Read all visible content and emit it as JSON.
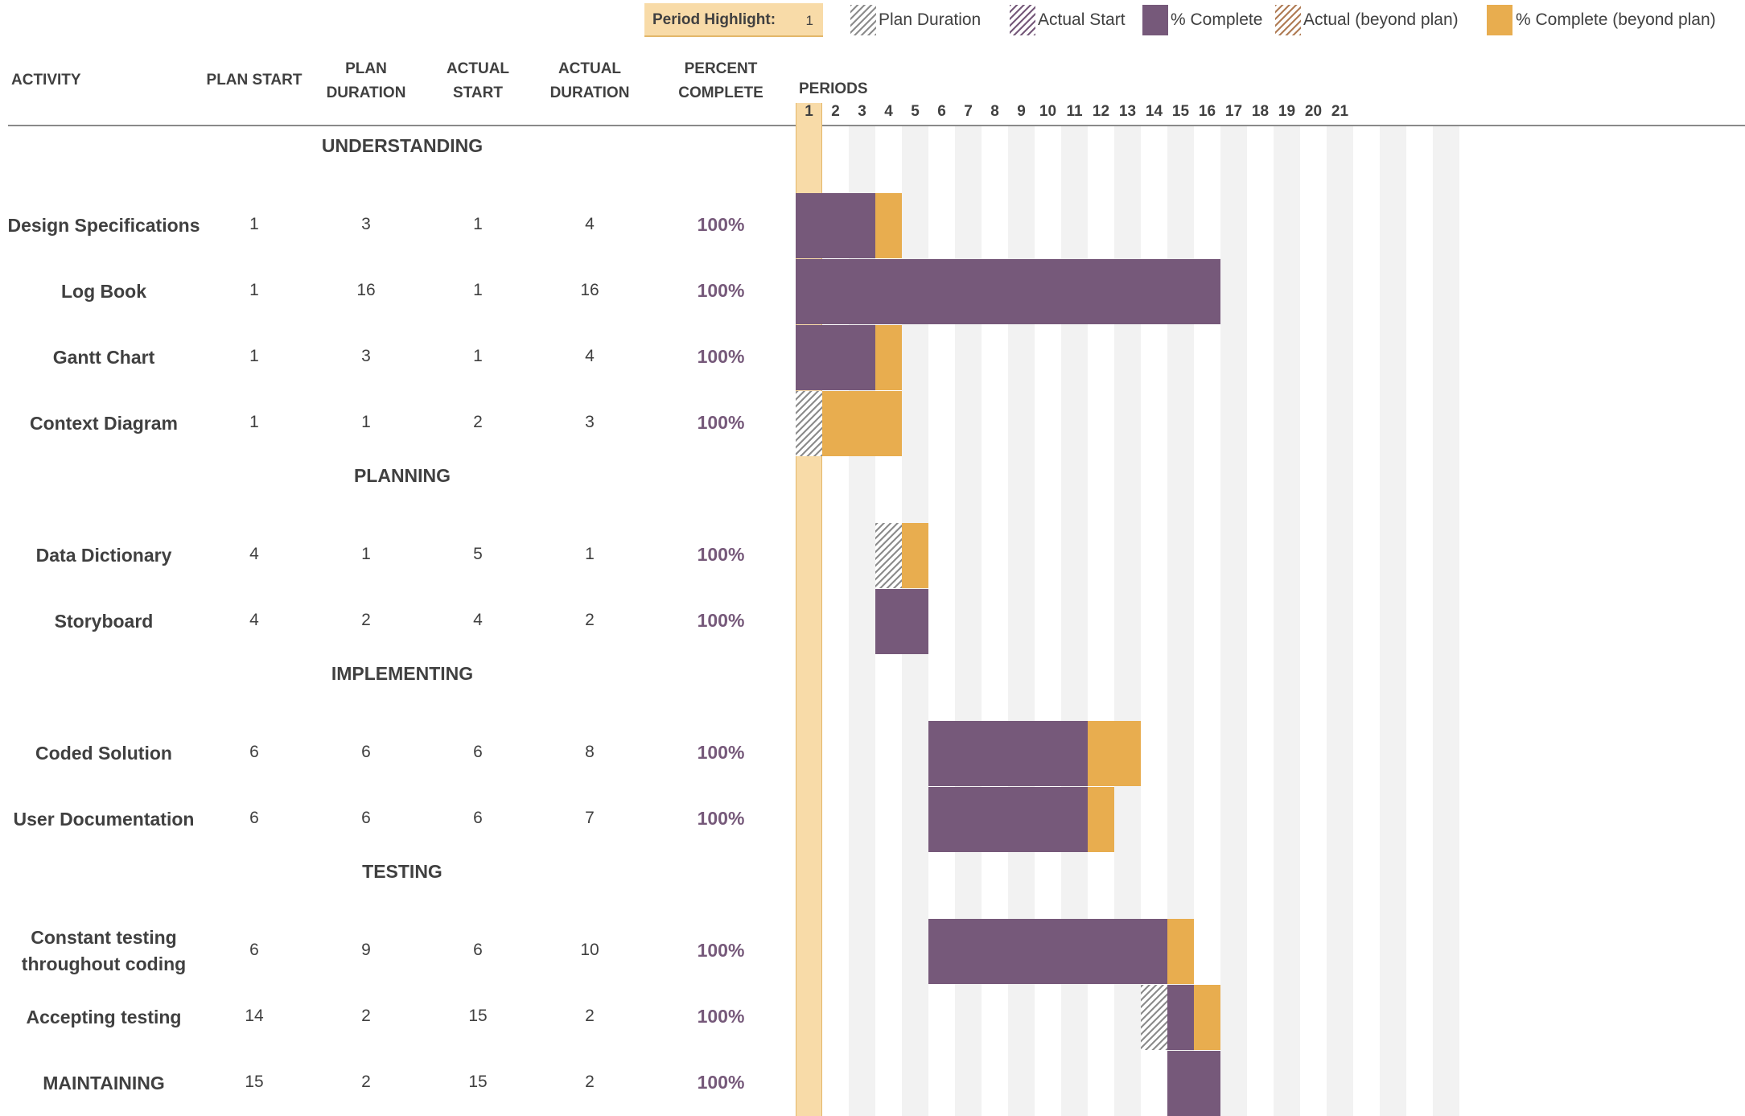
{
  "header": {
    "period_highlight_label": "Period Highlight:",
    "period_highlight_value": "1"
  },
  "legend": [
    {
      "label": "Plan Duration",
      "style": "hatch-gray"
    },
    {
      "label": "Actual Start",
      "style": "hatch-purple"
    },
    {
      "label": "% Complete",
      "style": "solid-purple"
    },
    {
      "label": "Actual (beyond plan)",
      "style": "hatch-brown"
    },
    {
      "label": "% Complete (beyond plan)",
      "style": "solid-orange"
    }
  ],
  "columns": {
    "activity": "ACTIVITY",
    "plan_start": "PLAN START",
    "plan_duration_1": "PLAN",
    "plan_duration_2": "DURATION",
    "actual_start_1": "ACTUAL",
    "actual_start_2": "START",
    "actual_duration_1": "ACTUAL",
    "actual_duration_2": "DURATION",
    "percent_1": "PERCENT",
    "percent_2": "COMPLETE",
    "periods": "PERIODS"
  },
  "colors": {
    "purple": "#76597a",
    "orange": "#e8ad4f",
    "highlight": "#f8dba8",
    "stripe": "#f2f2f2",
    "percent_text": "#76597a"
  },
  "chart_data": {
    "type": "gantt",
    "period_labels": [
      "1",
      "2",
      "3",
      "4",
      "5",
      "6",
      "7",
      "8",
      "9",
      "10",
      "11",
      "12",
      "13",
      "14",
      "15",
      "16",
      "17",
      "18",
      "19",
      "20",
      "21"
    ],
    "highlighted_period": 1,
    "rows": [
      {
        "kind": "section",
        "label": "UNDERSTANDING"
      },
      {
        "kind": "task",
        "activity": "Design Specifications",
        "plan_start": "1",
        "plan_duration": "3",
        "actual_start": "1",
        "actual_duration": "4",
        "percent": "100%"
      },
      {
        "kind": "task",
        "activity": "Log Book",
        "plan_start": "1",
        "plan_duration": "16",
        "actual_start": "1",
        "actual_duration": "16",
        "percent": "100%"
      },
      {
        "kind": "task",
        "activity": "Gantt Chart",
        "plan_start": "1",
        "plan_duration": "3",
        "actual_start": "1",
        "actual_duration": "4",
        "percent": "100%"
      },
      {
        "kind": "task",
        "activity": "Context Diagram",
        "plan_start": "1",
        "plan_duration": "1",
        "actual_start": "2",
        "actual_duration": "3",
        "percent": "100%"
      },
      {
        "kind": "section",
        "label": "PLANNING"
      },
      {
        "kind": "task",
        "activity": "Data Dictionary",
        "plan_start": "4",
        "plan_duration": "1",
        "actual_start": "5",
        "actual_duration": "1",
        "percent": "100%"
      },
      {
        "kind": "task",
        "activity": "Storyboard",
        "plan_start": "4",
        "plan_duration": "2",
        "actual_start": "4",
        "actual_duration": "2",
        "percent": "100%"
      },
      {
        "kind": "section",
        "label": "IMPLEMENTING"
      },
      {
        "kind": "task",
        "activity": "Coded Solution",
        "plan_start": "6",
        "plan_duration": "6",
        "actual_start": "6",
        "actual_duration": "8",
        "percent": "100%"
      },
      {
        "kind": "task",
        "activity": "User Documentation",
        "plan_start": "6",
        "plan_duration": "6",
        "actual_start": "6",
        "actual_duration": "7",
        "percent": "100%"
      },
      {
        "kind": "section",
        "label": "TESTING"
      },
      {
        "kind": "task",
        "activity": "Constant testing throughout coding",
        "plan_start": "6",
        "plan_duration": "9",
        "actual_start": "6",
        "actual_duration": "10",
        "percent": "100%"
      },
      {
        "kind": "task",
        "activity": "Accepting testing",
        "plan_start": "14",
        "plan_duration": "2",
        "actual_start": "15",
        "actual_duration": "2",
        "percent": "100%"
      },
      {
        "kind": "task",
        "activity": "MAINTAINING",
        "plan_start": "15",
        "plan_duration": "2",
        "actual_start": "15",
        "actual_duration": "2",
        "percent": "100%"
      }
    ]
  }
}
